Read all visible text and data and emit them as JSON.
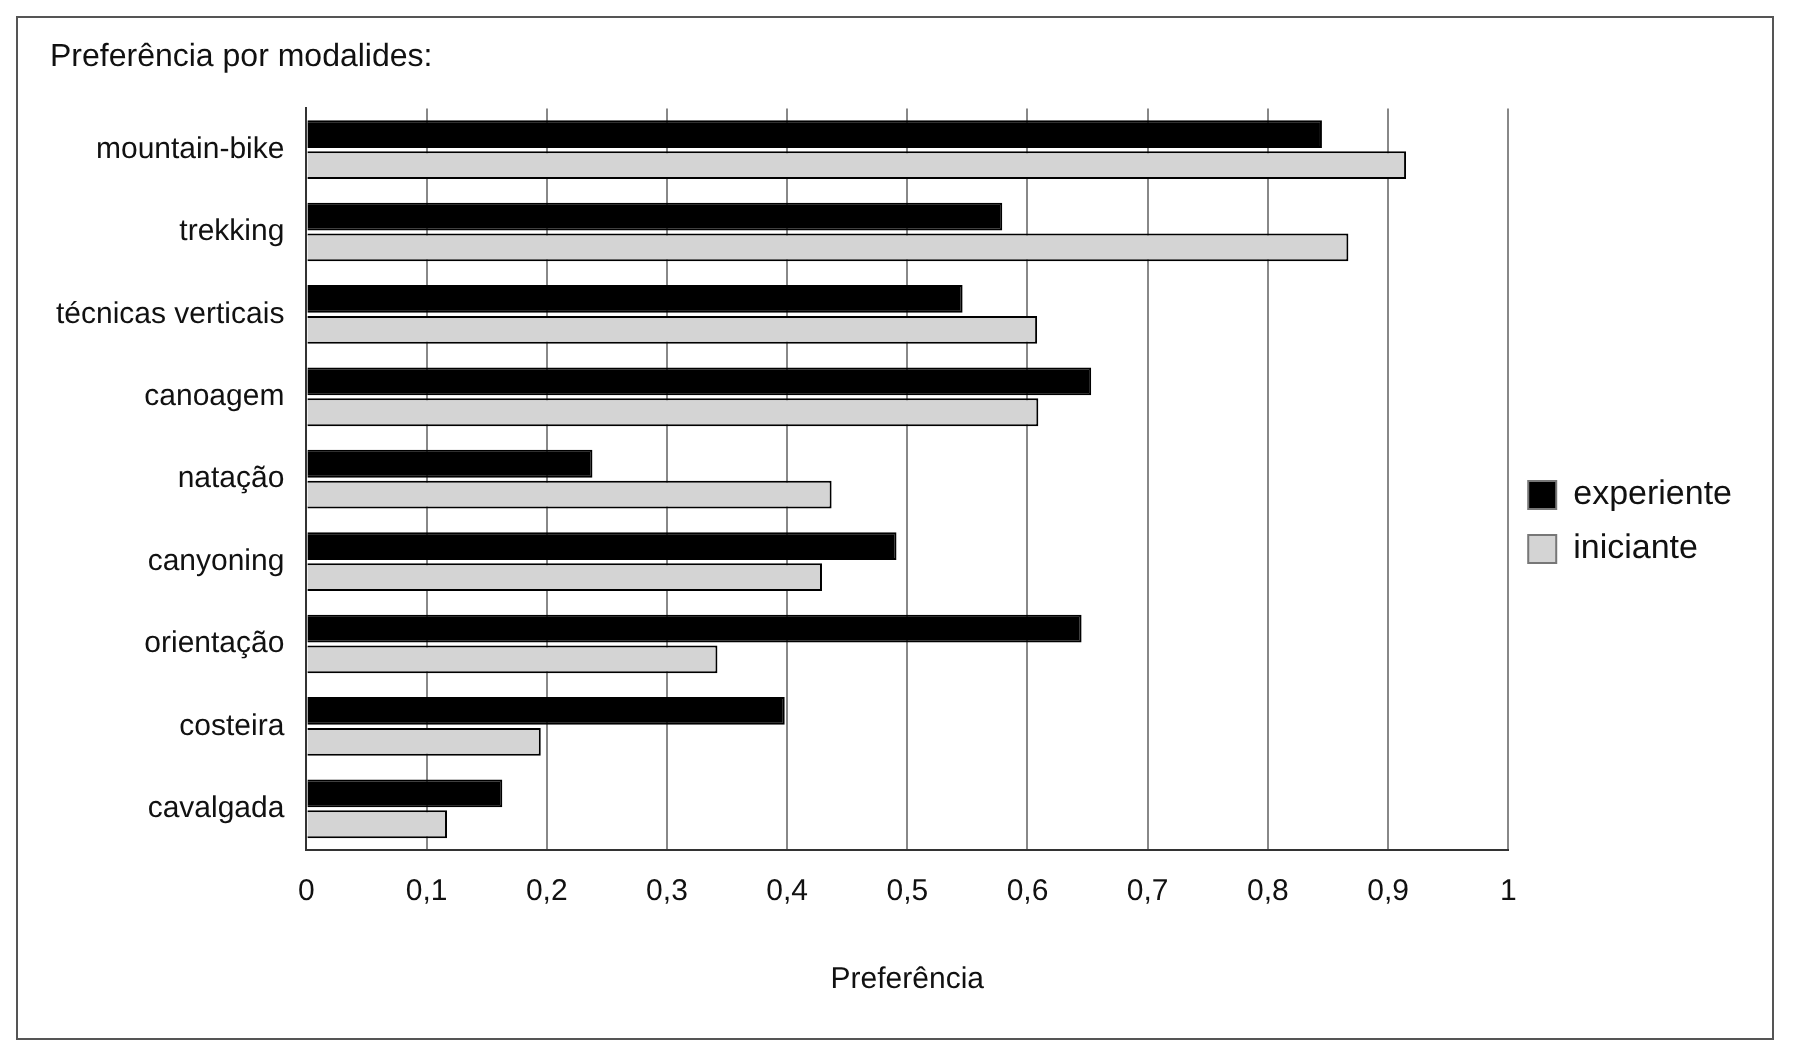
{
  "chart_data": {
    "type": "bar",
    "orientation": "horizontal",
    "title": "Preferência por modalides:",
    "xlabel": "Preferência",
    "categories": [
      "mountain-bike",
      "trekking",
      "técnicas verticais",
      "canoagem",
      "natação",
      "canyoning",
      "orientação",
      "costeira",
      "cavalgada"
    ],
    "series": [
      {
        "name": "experiente",
        "color": "#000000",
        "values": [
          0.845,
          0.579,
          0.546,
          0.653,
          0.238,
          0.491,
          0.645,
          0.398,
          0.163
        ]
      },
      {
        "name": "iniciante",
        "color": "#d4d4d4",
        "values": [
          0.915,
          0.867,
          0.608,
          0.609,
          0.437,
          0.429,
          0.342,
          0.195,
          0.117
        ]
      }
    ],
    "xlim": [
      0,
      1
    ],
    "xticks": [
      0,
      {
        "value": 0.1,
        "label": "0,1"
      },
      {
        "value": 0.2,
        "label": "0,2"
      },
      {
        "value": 0.3,
        "label": "0,3"
      },
      {
        "value": 0.4,
        "label": "0,4"
      },
      {
        "value": 0.5,
        "label": "0,5"
      },
      {
        "value": 0.6,
        "label": "0,6"
      },
      {
        "value": 0.7,
        "label": "0,7"
      },
      {
        "value": 0.8,
        "label": "0,8"
      },
      {
        "value": 0.9,
        "label": "0,9"
      },
      1
    ],
    "grid": "x",
    "legend": "right"
  }
}
